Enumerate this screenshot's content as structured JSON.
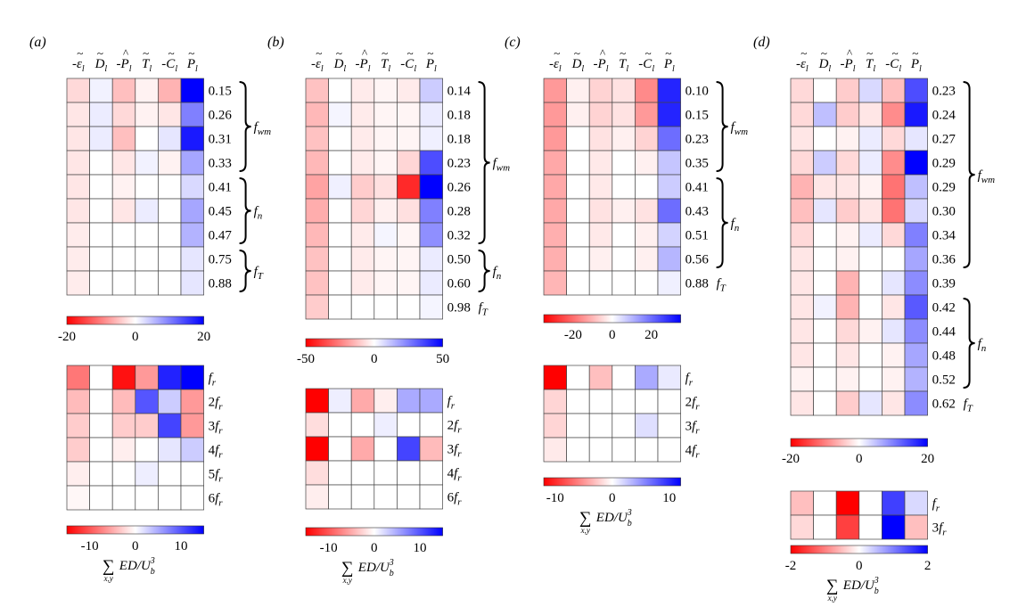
{
  "chart_data": [
    {
      "type": "heatmap",
      "panel_label": "(a)",
      "columns": [
        "-ε̃ₗ",
        "D̃ₗ",
        "-P̂ₗ",
        "T̃ₗ",
        "-C̃ₗ",
        "P̃ₗ"
      ],
      "upper": {
        "rows": [
          {
            "label": "0.15",
            "highlight": true,
            "values": [
              -3,
              1,
              -5,
              -1,
              -6,
              20
            ]
          },
          {
            "label": "0.26",
            "values": [
              -2,
              1.5,
              -3,
              -1,
              -2,
              10
            ]
          },
          {
            "label": "0.31",
            "values": [
              -2,
              1.5,
              -5,
              0,
              2,
              18
            ]
          },
          {
            "label": "0.33",
            "values": [
              -2,
              0,
              -2,
              1,
              -1,
              7
            ]
          },
          {
            "label": "0.41",
            "values": [
              -2,
              0,
              -1,
              0,
              0,
              3
            ]
          },
          {
            "label": "0.45",
            "values": [
              -2,
              0,
              -2,
              1.5,
              0,
              7
            ]
          },
          {
            "label": "0.47",
            "values": [
              -1.5,
              0,
              0,
              0,
              0,
              6
            ]
          },
          {
            "label": "0.75",
            "values": [
              -1.5,
              0,
              0,
              0,
              0,
              2
            ]
          },
          {
            "label": "0.88",
            "values": [
              -1.5,
              0,
              0,
              0,
              0,
              2
            ]
          }
        ],
        "groups": [
          {
            "label": "f",
            "sub": "wm",
            "value": "f_wm",
            "from": 0,
            "to": 3
          },
          {
            "label": "f",
            "sub": "n",
            "value": "f_n",
            "from": 4,
            "to": 6
          },
          {
            "label": "f",
            "sub": "T",
            "value": "f_T",
            "from": 7,
            "to": 8
          }
        ],
        "colorbar": {
          "min": -20,
          "max": 20,
          "ticks": [
            "-20",
            "0",
            "20"
          ]
        }
      },
      "lower": {
        "rows": [
          {
            "label": "f",
            "mult": "",
            "value": "f_r",
            "values": [
              -8,
              0,
              -14,
              -6,
              13,
              15
            ]
          },
          {
            "label": "f",
            "mult": "2",
            "value": "2f_r",
            "values": [
              -4,
              0,
              -4,
              10,
              3,
              -6
            ]
          },
          {
            "label": "f",
            "mult": "3",
            "value": "3f_r",
            "values": [
              -3,
              0,
              -3,
              -3,
              11,
              -6
            ]
          },
          {
            "label": "f",
            "mult": "4",
            "value": "4f_r",
            "values": [
              -3,
              0,
              -1,
              0,
              1.5,
              3
            ]
          },
          {
            "label": "f",
            "mult": "5",
            "value": "5f_r",
            "values": [
              -1,
              0,
              0,
              1,
              0,
              0
            ]
          },
          {
            "label": "f",
            "mult": "6",
            "value": "6f_r",
            "values": [
              -0.5,
              0,
              0,
              0,
              0,
              0
            ]
          }
        ],
        "colorbar": {
          "min": -15,
          "max": 15,
          "ticks": [
            "-10",
            "0",
            "10"
          ],
          "tick_values": [
            -10,
            0,
            10
          ]
        },
        "xlabel": "∑ ED/U_b^3 (x,y)"
      }
    },
    {
      "type": "heatmap",
      "panel_label": "(b)",
      "columns": [
        "-ε̃ₗ",
        "D̃ₗ",
        "-P̂ₗ",
        "T̃ₗ",
        "-C̃ₗ",
        "P̃ₗ"
      ],
      "upper": {
        "rows": [
          {
            "label": "0.14",
            "values": [
              -12,
              0,
              -4,
              -2,
              -4,
              10
            ]
          },
          {
            "label": "0.18",
            "highlight": true,
            "values": [
              -14,
              2,
              -4,
              -2,
              -2,
              4
            ]
          },
          {
            "label": "0.18",
            "values": [
              -12,
              0,
              -4,
              -2,
              -2,
              3
            ]
          },
          {
            "label": "0.23",
            "values": [
              -14,
              0,
              -4,
              -2,
              -8,
              35
            ]
          },
          {
            "label": "0.26",
            "values": [
              -18,
              3,
              -10,
              -6,
              -42,
              50
            ]
          },
          {
            "label": "0.28",
            "values": [
              -16,
              0,
              -8,
              -3,
              -6,
              25
            ]
          },
          {
            "label": "0.32",
            "values": [
              -14,
              0,
              -4,
              2,
              -2,
              22
            ]
          },
          {
            "label": "0.50",
            "values": [
              -12,
              0,
              -4,
              -2,
              -2,
              4
            ]
          },
          {
            "label": "0.60",
            "values": [
              -12,
              0,
              -4,
              -2,
              -2,
              4
            ]
          },
          {
            "label": "0.98",
            "values": [
              -10,
              0,
              0,
              0,
              0,
              2
            ]
          }
        ],
        "groups": [
          {
            "label": "f",
            "sub": "wm",
            "value": "f_wm",
            "from": 0,
            "to": 6
          },
          {
            "label": "f",
            "sub": "n",
            "value": "f_n",
            "from": 7,
            "to": 8
          }
        ],
        "trailing_label": {
          "row": 9,
          "label": "f",
          "sub": "T",
          "value": "f_T"
        },
        "colorbar": {
          "min": -50,
          "max": 50,
          "ticks": [
            "-50",
            "0",
            "50"
          ]
        }
      },
      "lower": {
        "rows": [
          {
            "label": "f",
            "mult": "",
            "value": "f_r",
            "values": [
              -15,
              1,
              -5,
              -1,
              5,
              5
            ]
          },
          {
            "label": "f",
            "mult": "2",
            "value": "2f_r",
            "values": [
              -2,
              0,
              0,
              1,
              0,
              0
            ]
          },
          {
            "label": "f",
            "mult": "3",
            "value": "3f_r",
            "values": [
              -15,
              0,
              -5,
              0,
              11,
              -4
            ]
          },
          {
            "label": "f",
            "mult": "4",
            "value": "4f_r",
            "values": [
              -2,
              0,
              0,
              0,
              0,
              0
            ]
          },
          {
            "label": "f",
            "mult": "6",
            "value": "6f_r",
            "values": [
              -1,
              0,
              0,
              0,
              0,
              0
            ]
          }
        ],
        "colorbar": {
          "min": -15,
          "max": 15,
          "ticks": [
            "-10",
            "0",
            "10"
          ],
          "tick_values": [
            -10,
            0,
            10
          ]
        },
        "xlabel": "∑ ED/U_b^3 (x,y)"
      }
    },
    {
      "type": "heatmap",
      "panel_label": "(c)",
      "columns": [
        "-ε̃ₗ",
        "D̃ₗ",
        "-P̂ₗ",
        "T̃ₗ",
        "-C̃ₗ",
        "P̃ₗ"
      ],
      "upper": {
        "rows": [
          {
            "label": "0.10",
            "highlight": true,
            "values": [
              -14,
              -2,
              -6,
              -4,
              -16,
              30
            ]
          },
          {
            "label": "0.15",
            "highlight": true,
            "values": [
              -14,
              -2,
              -6,
              -4,
              -14,
              30
            ]
          },
          {
            "label": "0.23",
            "values": [
              -14,
              0,
              -4,
              -2,
              -6,
              20
            ]
          },
          {
            "label": "0.35",
            "values": [
              -12,
              0,
              -3,
              0,
              -2,
              8
            ]
          },
          {
            "label": "0.41",
            "values": [
              -12,
              0,
              -3,
              0,
              0,
              7
            ]
          },
          {
            "label": "0.43",
            "values": [
              -12,
              0,
              -4,
              -2,
              -4,
              20
            ]
          },
          {
            "label": "0.51",
            "values": [
              -11,
              0,
              -3,
              0,
              -2,
              6
            ]
          },
          {
            "label": "0.56",
            "values": [
              -11,
              0,
              -2,
              0,
              -2,
              10
            ]
          },
          {
            "label": "0.88",
            "values": [
              -10,
              0,
              0,
              0,
              0,
              2
            ]
          }
        ],
        "groups": [
          {
            "label": "f",
            "sub": "wm",
            "value": "f_wm",
            "from": 0,
            "to": 3
          },
          {
            "label": "f",
            "sub": "n",
            "value": "f_n",
            "from": 4,
            "to": 7
          }
        ],
        "trailing_label": {
          "row": 8,
          "label": "f",
          "sub": "T",
          "value": "f_T"
        },
        "colorbar": {
          "min": -35,
          "max": 35,
          "ticks": [
            "-20",
            "0",
            "20"
          ],
          "tick_values": [
            -20,
            0,
            20
          ]
        }
      },
      "lower": {
        "rows": [
          {
            "label": "f",
            "mult": "",
            "value": "f_r",
            "values": [
              -12,
              0,
              -3,
              0,
              4,
              1
            ]
          },
          {
            "label": "f",
            "mult": "2",
            "value": "2f_r",
            "values": [
              -2,
              0,
              0,
              0,
              0,
              0
            ]
          },
          {
            "label": "f",
            "mult": "3",
            "value": "3f_r",
            "values": [
              -2,
              0,
              0,
              0,
              1.5,
              0
            ]
          },
          {
            "label": "f",
            "mult": "4",
            "value": "4f_r",
            "values": [
              -1,
              0,
              0,
              0,
              0,
              0
            ]
          }
        ],
        "colorbar": {
          "min": -12,
          "max": 12,
          "ticks": [
            "-10",
            "0",
            "10"
          ],
          "tick_values": [
            -10,
            0,
            10
          ]
        },
        "xlabel": "∑ ED/U_b^3 (x,y)"
      }
    },
    {
      "type": "heatmap",
      "panel_label": "(d)",
      "columns": [
        "-ε̃ₗ",
        "D̃ₗ",
        "-P̂ₗ",
        "T̃ₗ",
        "-C̃ₗ",
        "P̃ₗ"
      ],
      "upper": {
        "rows": [
          {
            "label": "0.23",
            "values": [
              -3,
              0,
              -4,
              3,
              -5,
              14
            ]
          },
          {
            "label": "0.24",
            "values": [
              -3,
              5,
              -4,
              -2,
              -9,
              18
            ]
          },
          {
            "label": "0.27",
            "values": [
              -2,
              0,
              -1,
              1.5,
              -3,
              2
            ]
          },
          {
            "label": "0.29",
            "values": [
              -3,
              4,
              -3,
              1.5,
              -9,
              20
            ]
          },
          {
            "label": "0.29",
            "values": [
              -6,
              -2,
              -2,
              -1,
              -11,
              5
            ]
          },
          {
            "label": "0.30",
            "values": [
              -5,
              2,
              -4,
              -2,
              -11,
              3
            ]
          },
          {
            "label": "0.34",
            "values": [
              -3,
              0,
              -1,
              1.5,
              -3,
              10
            ]
          },
          {
            "label": "0.36",
            "values": [
              -2,
              0,
              -1,
              0,
              0,
              7
            ]
          },
          {
            "label": "0.39",
            "values": [
              -2,
              0,
              -6,
              0,
              2,
              9
            ]
          },
          {
            "label": "0.42",
            "values": [
              -2,
              1,
              -6,
              0,
              -2,
              13
            ]
          },
          {
            "label": "0.44",
            "values": [
              -2,
              0,
              -3,
              -1,
              2,
              9
            ]
          },
          {
            "label": "0.48",
            "values": [
              -2,
              0,
              -2,
              0,
              -1,
              7
            ]
          },
          {
            "label": "0.52",
            "values": [
              -1,
              0,
              -1,
              0,
              -1,
              6
            ]
          },
          {
            "label": "0.62",
            "values": [
              -2,
              0,
              -4,
              2,
              -2,
              9
            ]
          }
        ],
        "groups": [
          {
            "label": "f",
            "sub": "wm",
            "value": "f_wm",
            "from": 0,
            "to": 7
          },
          {
            "label": "f",
            "sub": "n",
            "value": "f_n",
            "from": 9,
            "to": 12
          }
        ],
        "trailing_label": {
          "row": 13,
          "label": "f",
          "sub": "T",
          "value": "f_T"
        },
        "colorbar": {
          "min": -20,
          "max": 20,
          "ticks": [
            "-20",
            "0",
            "20"
          ]
        }
      },
      "lower": {
        "rows": [
          {
            "label": "f",
            "mult": "",
            "value": "f_r",
            "values": [
              -0.5,
              0,
              -2,
              0,
              1.5,
              0.3
            ]
          },
          {
            "label": "f",
            "mult": "3",
            "value": "3f_r",
            "values": [
              -0.3,
              0,
              -1.5,
              0,
              2,
              -0.5
            ]
          }
        ],
        "colorbar": {
          "min": -2,
          "max": 2,
          "ticks": [
            "-2",
            "0",
            "2"
          ]
        },
        "xlabel": "∑ ED/U_b^3 (x,y)"
      }
    }
  ],
  "labels": {
    "sum_symbol": "∑",
    "sum_sub": "x,y",
    "expr_main": "ED/U",
    "expr_sub": "b",
    "expr_sup": "3",
    "magenta": "#b030c8"
  }
}
